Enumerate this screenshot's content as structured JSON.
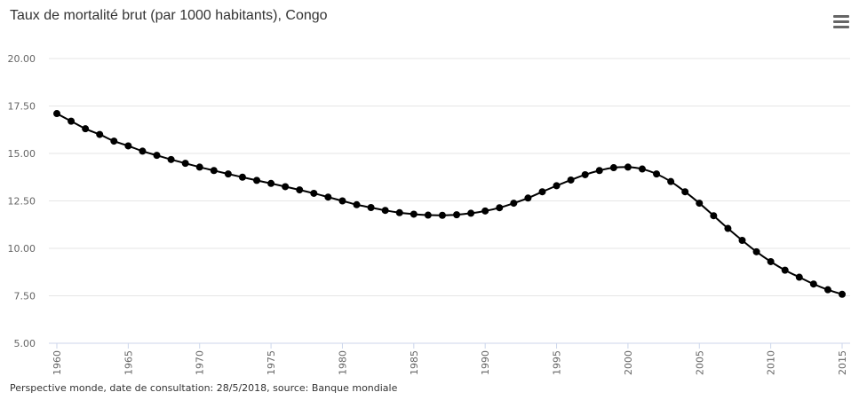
{
  "chart_data": {
    "type": "line",
    "title": "Taux de mortalité brut (par 1000 habitants), Congo",
    "xlabel": "",
    "ylabel": "",
    "ylim": [
      5,
      20
    ],
    "xlim": [
      1960,
      2015
    ],
    "y_ticks": [
      "5.00",
      "7.50",
      "10.00",
      "12.50",
      "15.00",
      "17.50",
      "20.00"
    ],
    "x_ticks": [
      "1960",
      "1965",
      "1970",
      "1975",
      "1980",
      "1985",
      "1990",
      "1995",
      "2000",
      "2005",
      "2010",
      "2015"
    ],
    "grid": true,
    "legend": false,
    "series": [
      {
        "color": "#000000",
        "x": [
          1960,
          1961,
          1962,
          1963,
          1964,
          1965,
          1966,
          1967,
          1968,
          1969,
          1970,
          1971,
          1972,
          1973,
          1974,
          1975,
          1976,
          1977,
          1978,
          1979,
          1980,
          1981,
          1982,
          1983,
          1984,
          1985,
          1986,
          1987,
          1988,
          1989,
          1990,
          1991,
          1992,
          1993,
          1994,
          1995,
          1996,
          1997,
          1998,
          1999,
          2000,
          2001,
          2002,
          2003,
          2004,
          2005,
          2006,
          2007,
          2008,
          2009,
          2010,
          2011,
          2012,
          2013,
          2014,
          2015
        ],
        "values": [
          17.1,
          16.7,
          16.3,
          16.0,
          15.65,
          15.4,
          15.12,
          14.9,
          14.68,
          14.48,
          14.28,
          14.1,
          13.92,
          13.75,
          13.58,
          13.42,
          13.25,
          13.08,
          12.9,
          12.7,
          12.5,
          12.3,
          12.15,
          12.0,
          11.88,
          11.8,
          11.75,
          11.74,
          11.77,
          11.85,
          11.97,
          12.14,
          12.38,
          12.65,
          12.98,
          13.3,
          13.6,
          13.88,
          14.1,
          14.25,
          14.28,
          14.18,
          13.92,
          13.52,
          12.98,
          12.38,
          11.72,
          11.05,
          10.42,
          9.82,
          9.3,
          8.85,
          8.48,
          8.12,
          7.82,
          7.58
        ]
      }
    ]
  },
  "menu": {
    "icon": "hamburger-icon"
  },
  "credits": "Perspective monde, date de consultation: 28/5/2018, source: Banque mondiale"
}
